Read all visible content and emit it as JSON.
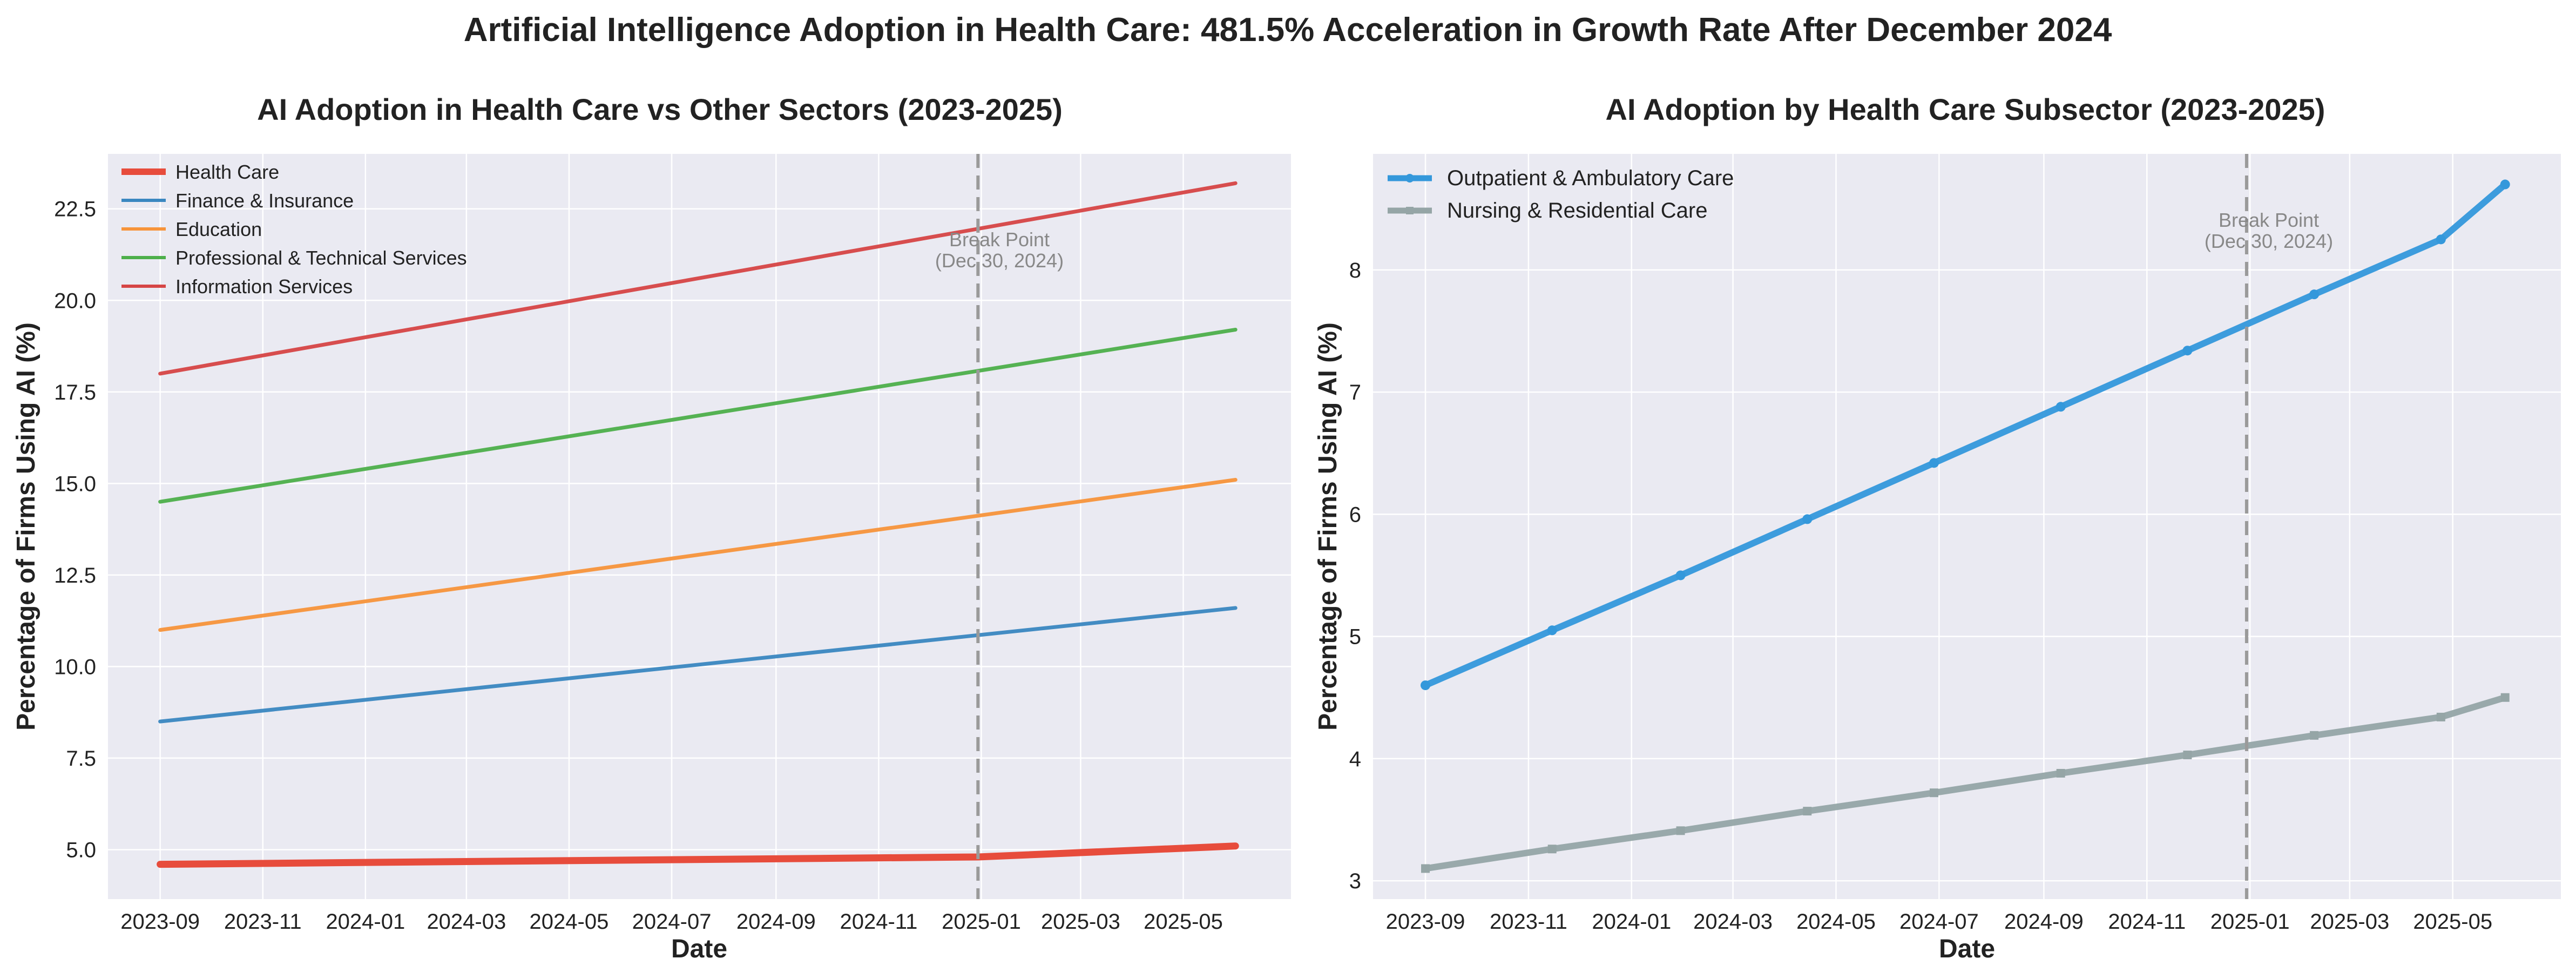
{
  "suptitle": "Artificial Intelligence Adoption in Health Care: 481.5% Acceleration in Growth Rate After December 2024",
  "chart_data": [
    {
      "type": "line",
      "title": "AI Adoption in Health Care vs Other Sectors (2023-2025)",
      "xlabel": "Date",
      "ylabel": "Percentage of Firms Using AI (%)",
      "x_tick_labels": [
        "2023-09",
        "2023-11",
        "2024-01",
        "2024-03",
        "2024-05",
        "2024-07",
        "2024-09",
        "2024-11",
        "2025-01",
        "2025-03",
        "2025-05"
      ],
      "y_tick_labels": [
        "5.0",
        "7.5",
        "10.0",
        "12.5",
        "15.0",
        "17.5",
        "20.0",
        "22.5"
      ],
      "xlim": [
        "2023-08-01",
        "2025-07-04"
      ],
      "ylim": [
        3.65,
        24.0
      ],
      "grid": true,
      "legend_position": "top-left",
      "break_point": {
        "date": "2024-12-30",
        "label": "Break Point",
        "sublabel": "(Dec 30, 2024)"
      },
      "series": [
        {
          "name": "Health Care",
          "color": "#e74c3c",
          "emphasis": true,
          "points": [
            [
              "2023-09-01",
              4.6
            ],
            [
              "2024-12-30",
              4.8
            ],
            [
              "2025-06-01",
              5.1
            ]
          ]
        },
        {
          "name": "Finance & Insurance",
          "color": "#3a87c0",
          "emphasis": false,
          "points": [
            [
              "2023-09-01",
              8.5
            ],
            [
              "2025-06-01",
              11.6
            ]
          ]
        },
        {
          "name": "Education",
          "color": "#f7943a",
          "emphasis": false,
          "points": [
            [
              "2023-09-01",
              11.0
            ],
            [
              "2025-06-01",
              15.1
            ]
          ]
        },
        {
          "name": "Professional & Technical Services",
          "color": "#4daf4a",
          "emphasis": false,
          "points": [
            [
              "2023-09-01",
              14.5
            ],
            [
              "2025-06-01",
              19.2
            ]
          ]
        },
        {
          "name": "Information Services",
          "color": "#d64545",
          "emphasis": false,
          "points": [
            [
              "2023-09-01",
              18.0
            ],
            [
              "2025-06-01",
              23.2
            ]
          ]
        }
      ]
    },
    {
      "type": "line",
      "title": "AI Adoption by Health Care Subsector (2023-2025)",
      "xlabel": "Date",
      "ylabel": "Percentage of Firms Using AI (%)",
      "x_tick_labels": [
        "2023-09",
        "2023-11",
        "2024-01",
        "2024-03",
        "2024-05",
        "2024-07",
        "2024-09",
        "2024-11",
        "2025-01",
        "2025-03",
        "2025-05"
      ],
      "y_tick_labels": [
        "3",
        "4",
        "5",
        "6",
        "7",
        "8"
      ],
      "xlim": [
        "2023-08-01",
        "2025-07-04"
      ],
      "ylim": [
        2.85,
        8.95
      ],
      "grid": true,
      "legend_position": "top-left",
      "break_point": {
        "date": "2024-12-30",
        "label": "Break Point",
        "sublabel": "(Dec 30, 2024)"
      },
      "series": [
        {
          "name": "Outpatient & Ambulatory Care",
          "color": "#3498db",
          "marker": "circle",
          "points": [
            [
              "2023-09-01",
              4.6
            ],
            [
              "2023-11-15",
              5.05
            ],
            [
              "2024-01-30",
              5.5
            ],
            [
              "2024-04-14",
              5.96
            ],
            [
              "2024-06-28",
              6.42
            ],
            [
              "2024-09-11",
              6.88
            ],
            [
              "2024-11-25",
              7.34
            ],
            [
              "2025-02-08",
              7.8
            ],
            [
              "2025-04-24",
              8.25
            ],
            [
              "2025-06-01",
              8.7
            ]
          ]
        },
        {
          "name": "Nursing & Residential Care",
          "color": "#95a5a6",
          "marker": "square",
          "points": [
            [
              "2023-09-01",
              3.1
            ],
            [
              "2023-11-15",
              3.26
            ],
            [
              "2024-01-30",
              3.41
            ],
            [
              "2024-04-14",
              3.57
            ],
            [
              "2024-06-28",
              3.72
            ],
            [
              "2024-09-11",
              3.88
            ],
            [
              "2024-11-25",
              4.03
            ],
            [
              "2025-02-08",
              4.19
            ],
            [
              "2025-04-24",
              4.34
            ],
            [
              "2025-06-01",
              4.5
            ]
          ]
        }
      ]
    }
  ]
}
